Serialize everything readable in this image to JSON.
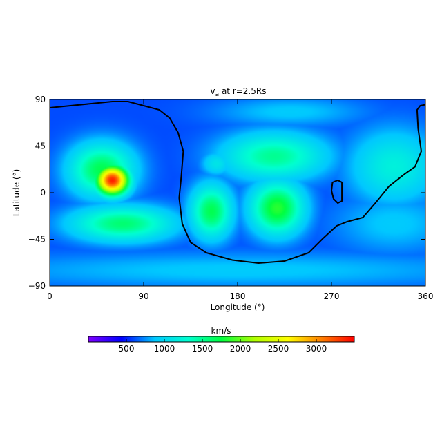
{
  "chart_data": {
    "type": "heatmap",
    "title": "v",
    "title_subscript": "a",
    "title_rest": " at r=2.5Rs",
    "xlabel": "Longitude (°)",
    "ylabel": "Latitude (°)",
    "xlim": [
      0,
      360
    ],
    "ylim": [
      -90,
      90
    ],
    "xticks": [
      0,
      90,
      180,
      270,
      360
    ],
    "yticks": [
      90,
      45,
      0,
      -45,
      -90
    ],
    "colorbar": {
      "label": "km/s",
      "range": [
        0,
        3500
      ],
      "ticks": [
        500,
        1000,
        1500,
        2000,
        2500,
        3000
      ],
      "colors": [
        "#7f00ff",
        "#0000ff",
        "#00c8ff",
        "#00ffd0",
        "#00ff40",
        "#b0ff00",
        "#ffff00",
        "#ff8000",
        "#ff0000"
      ]
    },
    "background_value": 600,
    "features": [
      {
        "lon": 60,
        "lat": 12,
        "sx": 11,
        "sy": 10,
        "value": 3400
      },
      {
        "lon": 50,
        "lat": 22,
        "sx": 22,
        "sy": 18,
        "value": 1700
      },
      {
        "lon": 70,
        "lat": -30,
        "sx": 35,
        "sy": 12,
        "value": 1600
      },
      {
        "lon": 155,
        "lat": -18,
        "sx": 14,
        "sy": 18,
        "value": 1700
      },
      {
        "lon": 160,
        "lat": 28,
        "sx": 10,
        "sy": 8,
        "value": 1100
      },
      {
        "lon": 218,
        "lat": -15,
        "sx": 18,
        "sy": 18,
        "value": 1850
      },
      {
        "lon": 215,
        "lat": 35,
        "sx": 35,
        "sy": 16,
        "value": 1500
      },
      {
        "lon": 330,
        "lat": 25,
        "sx": 30,
        "sy": 25,
        "value": 1200
      },
      {
        "lon": 180,
        "lat": -75,
        "sx": 180,
        "sy": 12,
        "value": 900
      },
      {
        "lon": 330,
        "lat": -30,
        "sx": 40,
        "sy": 20,
        "value": 900
      },
      {
        "lon": 230,
        "lat": 78,
        "sx": 50,
        "sy": 10,
        "value": 900
      }
    ],
    "contours": [
      {
        "name": "neutral-line",
        "lon_lat": [
          [
            0,
            82
          ],
          [
            20,
            84
          ],
          [
            40,
            86
          ],
          [
            60,
            88
          ],
          [
            75,
            88
          ],
          [
            90,
            84
          ],
          [
            105,
            80
          ],
          [
            115,
            72
          ],
          [
            123,
            58
          ],
          [
            128,
            40
          ],
          [
            126,
            15
          ],
          [
            124,
            -5
          ],
          [
            127,
            -30
          ],
          [
            135,
            -48
          ],
          [
            150,
            -58
          ],
          [
            175,
            -65
          ],
          [
            200,
            -68
          ],
          [
            225,
            -66
          ],
          [
            248,
            -58
          ],
          [
            262,
            -44
          ],
          [
            275,
            -32
          ],
          [
            285,
            -28
          ],
          [
            300,
            -24
          ],
          [
            312,
            -10
          ],
          [
            325,
            6
          ],
          [
            340,
            18
          ],
          [
            350,
            25
          ],
          [
            356,
            40
          ],
          [
            353,
            62
          ],
          [
            352,
            80
          ],
          [
            355,
            84
          ],
          [
            360,
            85
          ]
        ]
      },
      {
        "name": "island",
        "lon_lat": [
          [
            271,
            10
          ],
          [
            276,
            12
          ],
          [
            280,
            10
          ],
          [
            280,
            0
          ],
          [
            280,
            -8
          ],
          [
            276,
            -10
          ],
          [
            272,
            -6
          ],
          [
            270,
            2
          ],
          [
            271,
            10
          ]
        ]
      }
    ]
  }
}
